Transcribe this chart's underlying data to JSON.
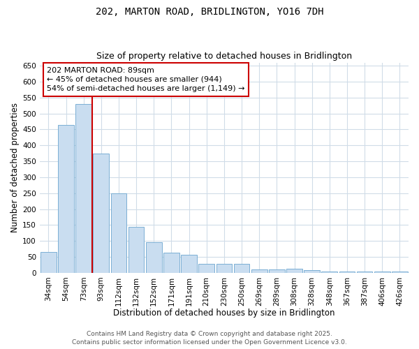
{
  "title1": "202, MARTON ROAD, BRIDLINGTON, YO16 7DH",
  "title2": "Size of property relative to detached houses in Bridlington",
  "xlabel": "Distribution of detached houses by size in Bridlington",
  "ylabel": "Number of detached properties",
  "categories": [
    "34sqm",
    "54sqm",
    "73sqm",
    "93sqm",
    "112sqm",
    "132sqm",
    "152sqm",
    "171sqm",
    "191sqm",
    "210sqm",
    "230sqm",
    "250sqm",
    "269sqm",
    "289sqm",
    "308sqm",
    "328sqm",
    "348sqm",
    "367sqm",
    "387sqm",
    "406sqm",
    "426sqm"
  ],
  "values": [
    65,
    465,
    530,
    375,
    250,
    145,
    95,
    63,
    57,
    28,
    28,
    28,
    10,
    10,
    12,
    8,
    5,
    5,
    5,
    5,
    5
  ],
  "bar_color": "#c9ddf0",
  "bar_edge_color": "#7bafd4",
  "red_line_x": 2.5,
  "property_label": "202 MARTON ROAD: 89sqm",
  "annotation_line2": "← 45% of detached houses are smaller (944)",
  "annotation_line3": "54% of semi-detached houses are larger (1,149) →",
  "annotation_box_color": "#ffffff",
  "annotation_border_color": "#cc0000",
  "red_line_color": "#cc0000",
  "ylim": [
    0,
    660
  ],
  "yticks": [
    0,
    50,
    100,
    150,
    200,
    250,
    300,
    350,
    400,
    450,
    500,
    550,
    600,
    650
  ],
  "background_color": "#ffffff",
  "grid_color": "#d0dce8",
  "footer_line1": "Contains HM Land Registry data © Crown copyright and database right 2025.",
  "footer_line2": "Contains public sector information licensed under the Open Government Licence v3.0.",
  "title_fontsize": 10,
  "subtitle_fontsize": 9,
  "axis_label_fontsize": 8.5,
  "tick_fontsize": 7.5,
  "footer_fontsize": 6.5,
  "annot_fontsize": 8
}
